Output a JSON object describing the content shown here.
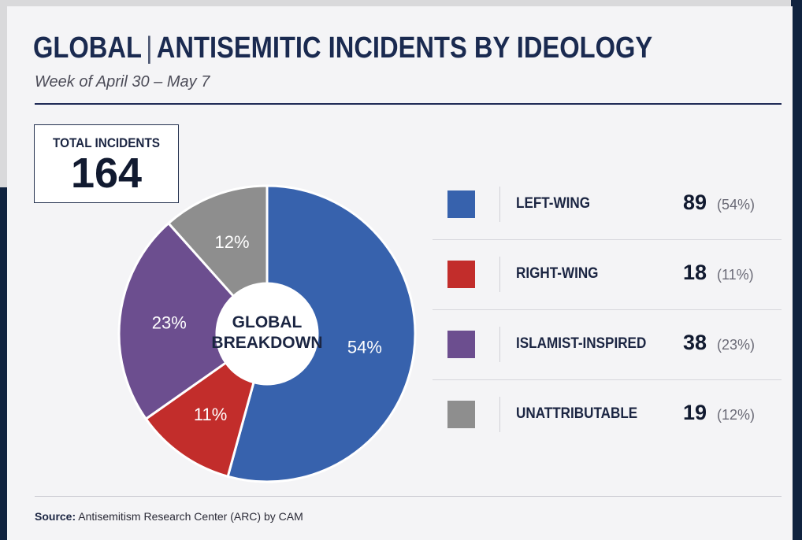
{
  "header": {
    "title_region": "GLOBAL",
    "title_separator": "|",
    "title_main": "ANTISEMITIC INCIDENTS BY IDEOLOGY",
    "subtitle": "Week of April 30 – May 7"
  },
  "total": {
    "label": "TOTAL INCIDENTS",
    "value": "164"
  },
  "chart_data": {
    "type": "pie",
    "variant": "donut",
    "title": "GLOBAL | ANTISEMITIC INCIDENTS BY IDEOLOGY",
    "subtitle": "Week of April 30 – May 7",
    "center_label": [
      "GLOBAL",
      "BREAKDOWN"
    ],
    "categories": [
      "LEFT-WING",
      "RIGHT-WING",
      "ISLAMIST-INSPIRED",
      "UNATTRIBUTABLE"
    ],
    "values": [
      89,
      18,
      38,
      19
    ],
    "percent_labels": [
      "54%",
      "11%",
      "23%",
      "12%"
    ],
    "colors": [
      "#3762ad",
      "#c22d2b",
      "#6c4e8f",
      "#8e8e8e"
    ],
    "legend_position": "right"
  },
  "legend": [
    {
      "label": "LEFT-WING",
      "count": "89",
      "pct": "(54%)",
      "color": "#3762ad"
    },
    {
      "label": "RIGHT-WING",
      "count": "18",
      "pct": "(11%)",
      "color": "#c22d2b"
    },
    {
      "label": "ISLAMIST-INSPIRED",
      "count": "38",
      "pct": "(23%)",
      "color": "#6c4e8f"
    },
    {
      "label": "UNATTRIBUTABLE",
      "count": "19",
      "pct": "(12%)",
      "color": "#8e8e8e"
    }
  ],
  "footer": {
    "source_label": "Source:",
    "source_text": "Antisemitism Research Center (ARC) by CAM"
  }
}
